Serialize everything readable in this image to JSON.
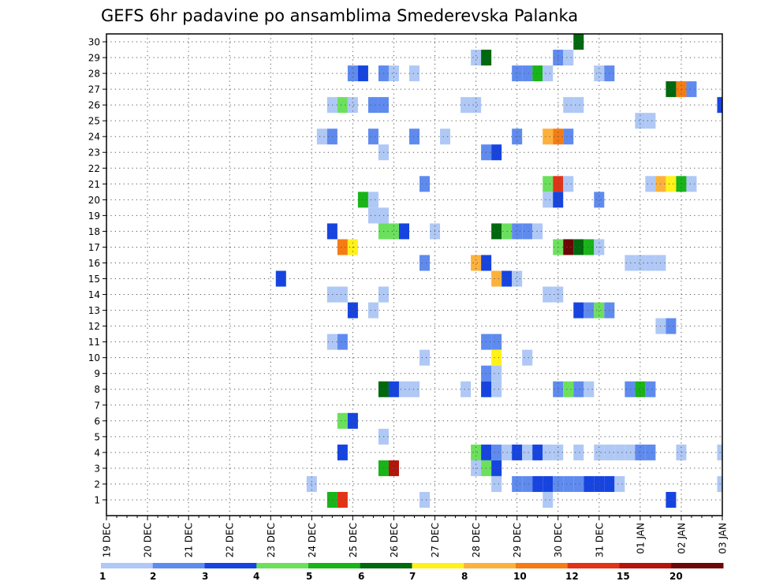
{
  "chart_data": {
    "type": "heatmap",
    "title": "GEFS 6hr padavine po ansamblima Smederevska Palanka",
    "x_tick_labels": [
      "19 DEC",
      "20 DEC",
      "21 DEC",
      "22 DEC",
      "23 DEC",
      "24 DEC",
      "25 DEC",
      "26 DEC",
      "27 DEC",
      "28 DEC",
      "29 DEC",
      "30 DEC",
      "31 DEC",
      "01 JAN",
      "02 JAN",
      "03 JAN"
    ],
    "y_tick_labels": [
      "1",
      "2",
      "3",
      "4",
      "5",
      "6",
      "7",
      "8",
      "9",
      "10",
      "11",
      "12",
      "13",
      "14",
      "15",
      "16",
      "17",
      "18",
      "19",
      "20",
      "21",
      "22",
      "23",
      "24",
      "25",
      "26",
      "27",
      "28",
      "29",
      "30"
    ],
    "xlim_steps": [
      0,
      60
    ],
    "ylim_members": [
      0,
      30
    ],
    "steps_per_day": 4,
    "grid": true,
    "legend": {
      "placement": "bottom",
      "labels": [
        "1",
        "2",
        "3",
        "4",
        "5",
        "6",
        "7",
        "8",
        "10",
        "12",
        "15",
        "20"
      ],
      "colors": [
        "#afc8f5",
        "#5f8bef",
        "#1644e0",
        "#6be05c",
        "#18b418",
        "#00680e",
        "#fff21a",
        "#fcb13c",
        "#f47c13",
        "#e23317",
        "#b4140b",
        "#6c0707"
      ]
    },
    "cells": [
      {
        "m": 30,
        "s": 46,
        "c": 5
      },
      {
        "m": 29,
        "s": 36,
        "c": 0
      },
      {
        "m": 29,
        "s": 37,
        "c": 5
      },
      {
        "m": 29,
        "s": 44,
        "c": 1
      },
      {
        "m": 29,
        "s": 45,
        "c": 0
      },
      {
        "m": 28,
        "s": 24,
        "c": 1
      },
      {
        "m": 28,
        "s": 25,
        "c": 2
      },
      {
        "m": 28,
        "s": 27,
        "c": 1
      },
      {
        "m": 28,
        "s": 28,
        "c": 0
      },
      {
        "m": 28,
        "s": 30,
        "c": 0
      },
      {
        "m": 28,
        "s": 40,
        "c": 1
      },
      {
        "m": 28,
        "s": 41,
        "c": 1
      },
      {
        "m": 28,
        "s": 42,
        "c": 4
      },
      {
        "m": 28,
        "s": 43,
        "c": 0
      },
      {
        "m": 28,
        "s": 48,
        "c": 0
      },
      {
        "m": 28,
        "s": 49,
        "c": 1
      },
      {
        "m": 27,
        "s": 55,
        "c": 5
      },
      {
        "m": 27,
        "s": 56,
        "c": 8
      },
      {
        "m": 27,
        "s": 57,
        "c": 1
      },
      {
        "m": 26,
        "s": 22,
        "c": 0
      },
      {
        "m": 26,
        "s": 23,
        "c": 3
      },
      {
        "m": 26,
        "s": 24,
        "c": 0
      },
      {
        "m": 26,
        "s": 26,
        "c": 1
      },
      {
        "m": 26,
        "s": 27,
        "c": 1
      },
      {
        "m": 26,
        "s": 35,
        "c": 0
      },
      {
        "m": 26,
        "s": 36,
        "c": 0
      },
      {
        "m": 26,
        "s": 45,
        "c": 0
      },
      {
        "m": 26,
        "s": 46,
        "c": 0
      },
      {
        "m": 26,
        "s": 60,
        "c": 2
      },
      {
        "m": 25,
        "s": 52,
        "c": 0
      },
      {
        "m": 25,
        "s": 53,
        "c": 0
      },
      {
        "m": 24,
        "s": 21,
        "c": 0
      },
      {
        "m": 24,
        "s": 22,
        "c": 1
      },
      {
        "m": 24,
        "s": 26,
        "c": 1
      },
      {
        "m": 24,
        "s": 30,
        "c": 1
      },
      {
        "m": 24,
        "s": 33,
        "c": 0
      },
      {
        "m": 24,
        "s": 40,
        "c": 1
      },
      {
        "m": 24,
        "s": 43,
        "c": 7
      },
      {
        "m": 24,
        "s": 44,
        "c": 8
      },
      {
        "m": 24,
        "s": 45,
        "c": 1
      },
      {
        "m": 23,
        "s": 27,
        "c": 0
      },
      {
        "m": 23,
        "s": 37,
        "c": 1
      },
      {
        "m": 23,
        "s": 38,
        "c": 2
      },
      {
        "m": 21,
        "s": 31,
        "c": 1
      },
      {
        "m": 21,
        "s": 43,
        "c": 3
      },
      {
        "m": 21,
        "s": 44,
        "c": 9
      },
      {
        "m": 21,
        "s": 45,
        "c": 0
      },
      {
        "m": 21,
        "s": 53,
        "c": 0
      },
      {
        "m": 21,
        "s": 54,
        "c": 7
      },
      {
        "m": 21,
        "s": 55,
        "c": 6
      },
      {
        "m": 21,
        "s": 56,
        "c": 4
      },
      {
        "m": 21,
        "s": 57,
        "c": 0
      },
      {
        "m": 20,
        "s": 25,
        "c": 4
      },
      {
        "m": 20,
        "s": 26,
        "c": 0
      },
      {
        "m": 20,
        "s": 43,
        "c": 0
      },
      {
        "m": 20,
        "s": 44,
        "c": 2
      },
      {
        "m": 20,
        "s": 48,
        "c": 1
      },
      {
        "m": 19,
        "s": 26,
        "c": 0
      },
      {
        "m": 19,
        "s": 27,
        "c": 0
      },
      {
        "m": 18,
        "s": 22,
        "c": 2
      },
      {
        "m": 18,
        "s": 27,
        "c": 3
      },
      {
        "m": 18,
        "s": 28,
        "c": 3
      },
      {
        "m": 18,
        "s": 29,
        "c": 2
      },
      {
        "m": 18,
        "s": 32,
        "c": 0
      },
      {
        "m": 18,
        "s": 38,
        "c": 5
      },
      {
        "m": 18,
        "s": 39,
        "c": 3
      },
      {
        "m": 18,
        "s": 40,
        "c": 1
      },
      {
        "m": 18,
        "s": 41,
        "c": 1
      },
      {
        "m": 18,
        "s": 42,
        "c": 0
      },
      {
        "m": 17,
        "s": 23,
        "c": 8
      },
      {
        "m": 17,
        "s": 24,
        "c": 6
      },
      {
        "m": 17,
        "s": 44,
        "c": 3
      },
      {
        "m": 17,
        "s": 45,
        "c": 11
      },
      {
        "m": 17,
        "s": 46,
        "c": 5
      },
      {
        "m": 17,
        "s": 47,
        "c": 4
      },
      {
        "m": 17,
        "s": 48,
        "c": 0
      },
      {
        "m": 16,
        "s": 31,
        "c": 1
      },
      {
        "m": 16,
        "s": 36,
        "c": 7
      },
      {
        "m": 16,
        "s": 37,
        "c": 2
      },
      {
        "m": 16,
        "s": 51,
        "c": 0
      },
      {
        "m": 16,
        "s": 52,
        "c": 0
      },
      {
        "m": 16,
        "s": 53,
        "c": 0
      },
      {
        "m": 16,
        "s": 54,
        "c": 0
      },
      {
        "m": 15,
        "s": 17,
        "c": 2
      },
      {
        "m": 15,
        "s": 38,
        "c": 7
      },
      {
        "m": 15,
        "s": 39,
        "c": 2
      },
      {
        "m": 15,
        "s": 40,
        "c": 0
      },
      {
        "m": 14,
        "s": 22,
        "c": 0
      },
      {
        "m": 14,
        "s": 23,
        "c": 0
      },
      {
        "m": 14,
        "s": 27,
        "c": 0
      },
      {
        "m": 14,
        "s": 43,
        "c": 0
      },
      {
        "m": 14,
        "s": 44,
        "c": 0
      },
      {
        "m": 13,
        "s": 24,
        "c": 2
      },
      {
        "m": 13,
        "s": 26,
        "c": 0
      },
      {
        "m": 13,
        "s": 46,
        "c": 2
      },
      {
        "m": 13,
        "s": 47,
        "c": 1
      },
      {
        "m": 13,
        "s": 48,
        "c": 3
      },
      {
        "m": 13,
        "s": 49,
        "c": 1
      },
      {
        "m": 12,
        "s": 54,
        "c": 0
      },
      {
        "m": 12,
        "s": 55,
        "c": 1
      },
      {
        "m": 11,
        "s": 22,
        "c": 0
      },
      {
        "m": 11,
        "s": 23,
        "c": 1
      },
      {
        "m": 11,
        "s": 37,
        "c": 1
      },
      {
        "m": 11,
        "s": 38,
        "c": 1
      },
      {
        "m": 10,
        "s": 31,
        "c": 0
      },
      {
        "m": 10,
        "s": 38,
        "c": 6
      },
      {
        "m": 10,
        "s": 41,
        "c": 0
      },
      {
        "m": 9,
        "s": 37,
        "c": 1
      },
      {
        "m": 9,
        "s": 38,
        "c": 0
      },
      {
        "m": 8,
        "s": 27,
        "c": 5
      },
      {
        "m": 8,
        "s": 28,
        "c": 2
      },
      {
        "m": 8,
        "s": 29,
        "c": 0
      },
      {
        "m": 8,
        "s": 30,
        "c": 0
      },
      {
        "m": 8,
        "s": 35,
        "c": 0
      },
      {
        "m": 8,
        "s": 37,
        "c": 2
      },
      {
        "m": 8,
        "s": 38,
        "c": 0
      },
      {
        "m": 8,
        "s": 44,
        "c": 1
      },
      {
        "m": 8,
        "s": 45,
        "c": 3
      },
      {
        "m": 8,
        "s": 46,
        "c": 1
      },
      {
        "m": 8,
        "s": 47,
        "c": 0
      },
      {
        "m": 8,
        "s": 51,
        "c": 1
      },
      {
        "m": 8,
        "s": 52,
        "c": 4
      },
      {
        "m": 8,
        "s": 53,
        "c": 1
      },
      {
        "m": 6,
        "s": 23,
        "c": 3
      },
      {
        "m": 6,
        "s": 24,
        "c": 2
      },
      {
        "m": 5,
        "s": 27,
        "c": 0
      },
      {
        "m": 4,
        "s": 23,
        "c": 2
      },
      {
        "m": 4,
        "s": 36,
        "c": 3
      },
      {
        "m": 4,
        "s": 37,
        "c": 2
      },
      {
        "m": 4,
        "s": 38,
        "c": 1
      },
      {
        "m": 4,
        "s": 39,
        "c": 0
      },
      {
        "m": 4,
        "s": 40,
        "c": 2
      },
      {
        "m": 4,
        "s": 41,
        "c": 0
      },
      {
        "m": 4,
        "s": 42,
        "c": 2
      },
      {
        "m": 4,
        "s": 43,
        "c": 0
      },
      {
        "m": 4,
        "s": 44,
        "c": 0
      },
      {
        "m": 4,
        "s": 46,
        "c": 0
      },
      {
        "m": 4,
        "s": 48,
        "c": 0
      },
      {
        "m": 4,
        "s": 49,
        "c": 0
      },
      {
        "m": 4,
        "s": 50,
        "c": 0
      },
      {
        "m": 4,
        "s": 51,
        "c": 0
      },
      {
        "m": 4,
        "s": 52,
        "c": 1
      },
      {
        "m": 4,
        "s": 53,
        "c": 1
      },
      {
        "m": 4,
        "s": 56,
        "c": 0
      },
      {
        "m": 4,
        "s": 60,
        "c": 0
      },
      {
        "m": 3,
        "s": 27,
        "c": 4
      },
      {
        "m": 3,
        "s": 28,
        "c": 10
      },
      {
        "m": 3,
        "s": 36,
        "c": 0
      },
      {
        "m": 3,
        "s": 37,
        "c": 3
      },
      {
        "m": 3,
        "s": 38,
        "c": 2
      },
      {
        "m": 2,
        "s": 20,
        "c": 0
      },
      {
        "m": 2,
        "s": 38,
        "c": 0
      },
      {
        "m": 2,
        "s": 40,
        "c": 1
      },
      {
        "m": 2,
        "s": 41,
        "c": 1
      },
      {
        "m": 2,
        "s": 42,
        "c": 2
      },
      {
        "m": 2,
        "s": 43,
        "c": 2
      },
      {
        "m": 2,
        "s": 44,
        "c": 1
      },
      {
        "m": 2,
        "s": 45,
        "c": 1
      },
      {
        "m": 2,
        "s": 46,
        "c": 1
      },
      {
        "m": 2,
        "s": 47,
        "c": 2
      },
      {
        "m": 2,
        "s": 48,
        "c": 2
      },
      {
        "m": 2,
        "s": 49,
        "c": 2
      },
      {
        "m": 2,
        "s": 50,
        "c": 0
      },
      {
        "m": 2,
        "s": 60,
        "c": 0
      },
      {
        "m": 1,
        "s": 22,
        "c": 4
      },
      {
        "m": 1,
        "s": 23,
        "c": 9
      },
      {
        "m": 1,
        "s": 31,
        "c": 0
      },
      {
        "m": 1,
        "s": 43,
        "c": 0
      },
      {
        "m": 1,
        "s": 55,
        "c": 2
      }
    ]
  }
}
